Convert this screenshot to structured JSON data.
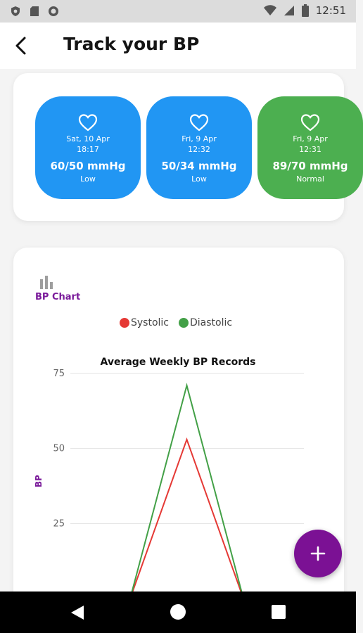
{
  "status_bar": {
    "time": "12:51"
  },
  "header": {
    "title": "Track your BP"
  },
  "readings": [
    {
      "date": "Sat, 10 Apr",
      "time": "18:17",
      "value": "60/50 mmHg",
      "status": "Low",
      "color": "#2196F3"
    },
    {
      "date": "Fri, 9 Apr",
      "time": "12:32",
      "value": "50/34 mmHg",
      "status": "Low",
      "color": "#2196F3"
    },
    {
      "date": "Fri, 9 Apr",
      "time": "12:31",
      "value": "89/70 mmHg",
      "status": "Normal",
      "color": "#4CAF50"
    }
  ],
  "chart_section": {
    "label": "BP Chart"
  },
  "chart_data": {
    "type": "line",
    "title": "Average Weekly BP Records",
    "ylabel": "BP",
    "ylim": [
      0,
      75
    ],
    "yticks": [
      "75",
      "50",
      "25"
    ],
    "series": [
      {
        "name": "Systolic",
        "color": "#e53935",
        "points": [
          [
            0,
            0
          ],
          [
            1,
            53
          ],
          [
            2,
            0
          ]
        ]
      },
      {
        "name": "Diastolic",
        "color": "#43a047",
        "points": [
          [
            0,
            0
          ],
          [
            1,
            71
          ],
          [
            2,
            0
          ]
        ]
      }
    ]
  },
  "colors": {
    "accent": "#7a1a9a",
    "fab": "#7b1194"
  }
}
